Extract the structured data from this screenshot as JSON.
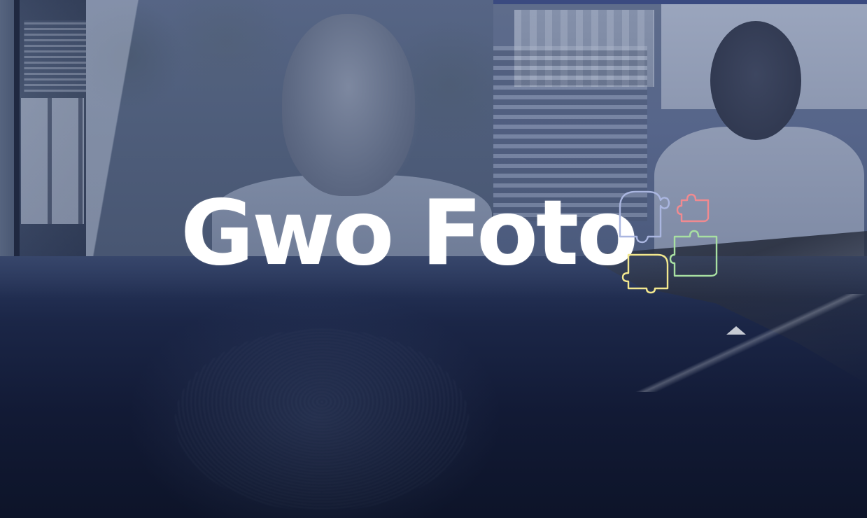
{
  "logo": {
    "wordmark": "Gwo Foto",
    "icon": "puzzle-pieces-icon",
    "piece_colors": [
      "#aab6e0",
      "#f08a90",
      "#a8e0a2",
      "#f3e88e"
    ]
  },
  "background": {
    "tint_color": "#3a4a78",
    "panels": [
      {
        "name": "office-shelf-photo"
      },
      {
        "name": "man-portrait-photo"
      },
      {
        "name": "woman-at-desk-photo"
      },
      {
        "name": "aerial-sea-photo"
      }
    ]
  }
}
